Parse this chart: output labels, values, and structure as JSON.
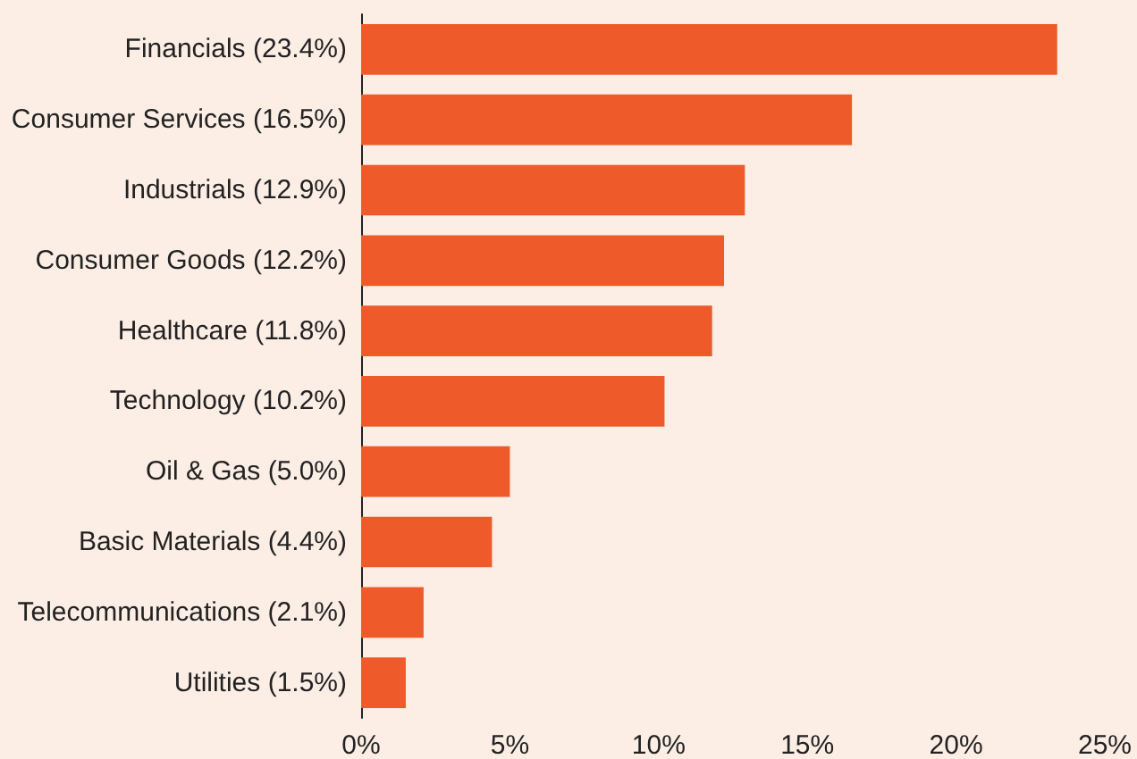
{
  "chart_data": {
    "type": "bar",
    "orientation": "horizontal",
    "categories": [
      "Financials (23.4%)",
      "Consumer Services (16.5%)",
      "Industrials (12.9%)",
      "Consumer Goods (12.2%)",
      "Healthcare (11.8%)",
      "Technology (10.2%)",
      "Oil & Gas (5.0%)",
      "Basic Materials (4.4%)",
      "Telecommunications (2.1%)",
      "Utilities (1.5%)"
    ],
    "values": [
      23.4,
      16.5,
      12.9,
      12.2,
      11.8,
      10.2,
      5.0,
      4.4,
      2.1,
      1.5
    ],
    "color": "#ee5a2a",
    "xlim": [
      0,
      25
    ],
    "xticks": [
      {
        "value": 0,
        "label": "0%"
      },
      {
        "value": 5,
        "label": "5%"
      },
      {
        "value": 10,
        "label": "10%"
      },
      {
        "value": 15,
        "label": "15%"
      },
      {
        "value": 20,
        "label": "20%"
      },
      {
        "value": 25,
        "label": "25%"
      }
    ],
    "grid": false
  }
}
